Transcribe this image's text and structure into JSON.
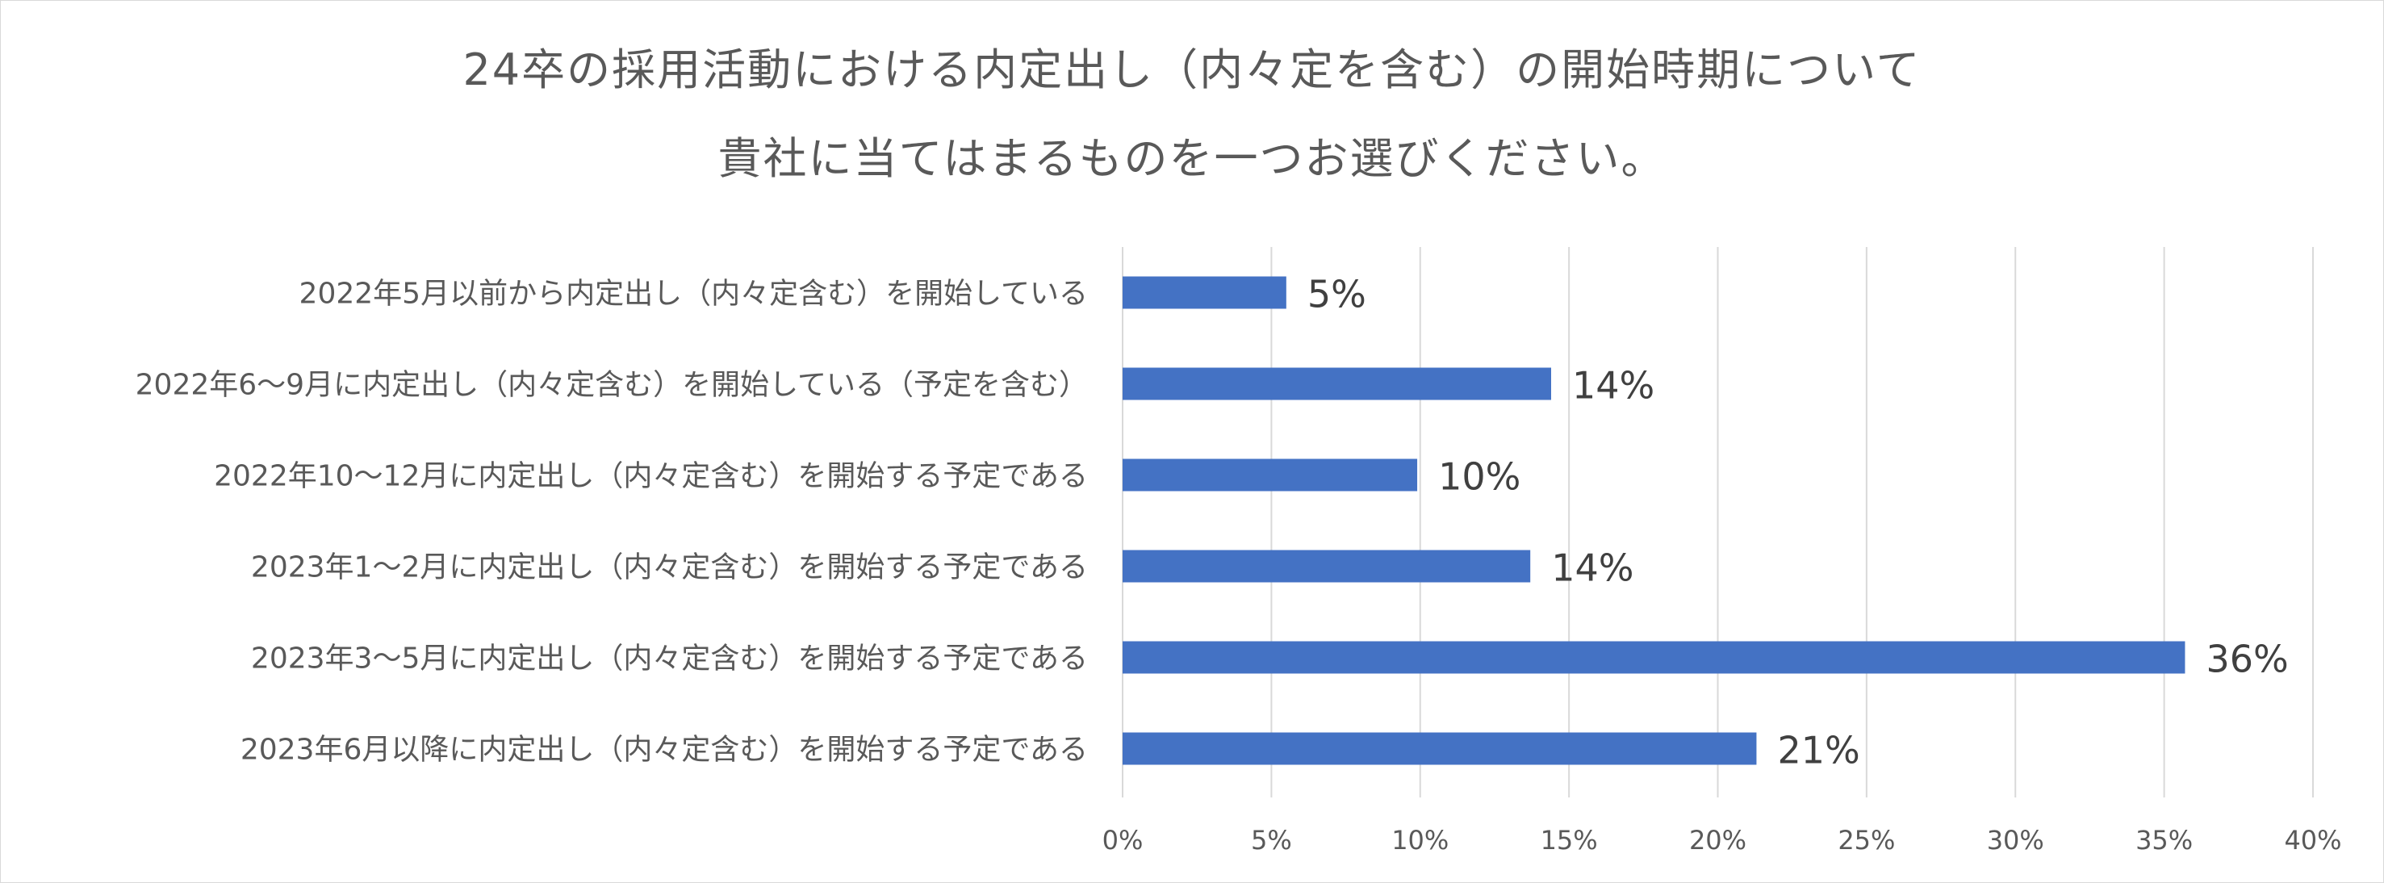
{
  "chart_data": {
    "type": "bar",
    "orientation": "horizontal",
    "title": [
      "24卒の採用活動における内定出し（内々定を含む）の開始時期について",
      "貴社に当てはまるものを一つお選びください。"
    ],
    "categories": [
      "2022年5月以前から内定出し（内々定含む）を開始している",
      "2022年6～9月に内定出し（内々定含む）を開始している（予定を含む）",
      "2022年10～12月に内定出し（内々定含む）を開始する予定である",
      "2023年1～2月に内定出し（内々定含む）を開始する予定である",
      "2023年3～5月に内定出し（内々定含む）を開始する予定である",
      "2023年6月以降に内定出し（内々定含む）を開始する予定である"
    ],
    "values": [
      5.5,
      14.4,
      9.9,
      13.7,
      35.7,
      21.3
    ],
    "data_labels": [
      "5%",
      "14%",
      "10%",
      "14%",
      "36%",
      "21%"
    ],
    "xlim": [
      0,
      40
    ],
    "x_ticks": [
      0,
      5,
      10,
      15,
      20,
      25,
      30,
      35,
      40
    ],
    "x_tick_labels": [
      "0%",
      "5%",
      "10%",
      "15%",
      "20%",
      "25%",
      "30%",
      "35%",
      "40%"
    ],
    "grid": true,
    "legend": "none",
    "colors": {
      "bar": "#4472C4",
      "grid": "#d9d9d9",
      "text": "#595959",
      "data_label": "#404040"
    }
  }
}
